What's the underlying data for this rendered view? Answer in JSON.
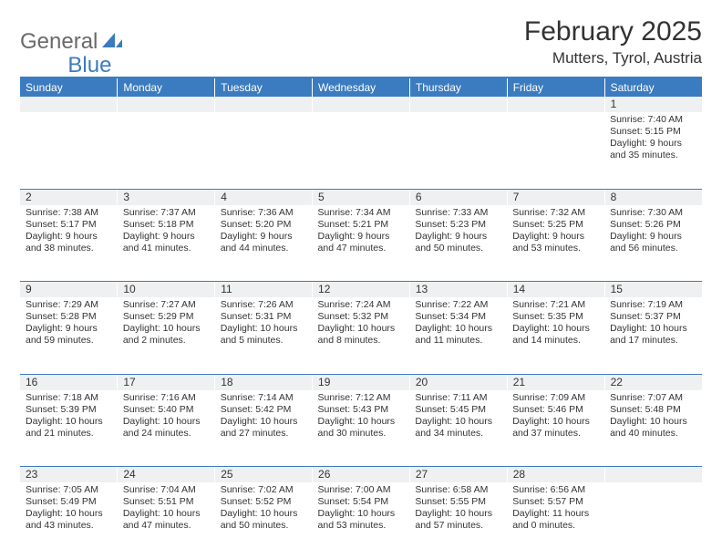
{
  "logo": {
    "part1": "General",
    "part2": "Blue"
  },
  "title": "February 2025",
  "location": "Mutters, Tyrol, Austria",
  "colors": {
    "header_bar": "#3b7bbf",
    "daynum_bg": "#eef0f1",
    "text": "#333333",
    "logo_gray": "#6a6a6a",
    "logo_blue": "#3b7bbf"
  },
  "weekdays": [
    "Sunday",
    "Monday",
    "Tuesday",
    "Wednesday",
    "Thursday",
    "Friday",
    "Saturday"
  ],
  "weeks": [
    [
      null,
      null,
      null,
      null,
      null,
      null,
      {
        "n": "1",
        "sr": "Sunrise: 7:40 AM",
        "ss": "Sunset: 5:15 PM",
        "dl": "Daylight: 9 hours and 35 minutes."
      }
    ],
    [
      {
        "n": "2",
        "sr": "Sunrise: 7:38 AM",
        "ss": "Sunset: 5:17 PM",
        "dl": "Daylight: 9 hours and 38 minutes."
      },
      {
        "n": "3",
        "sr": "Sunrise: 7:37 AM",
        "ss": "Sunset: 5:18 PM",
        "dl": "Daylight: 9 hours and 41 minutes."
      },
      {
        "n": "4",
        "sr": "Sunrise: 7:36 AM",
        "ss": "Sunset: 5:20 PM",
        "dl": "Daylight: 9 hours and 44 minutes."
      },
      {
        "n": "5",
        "sr": "Sunrise: 7:34 AM",
        "ss": "Sunset: 5:21 PM",
        "dl": "Daylight: 9 hours and 47 minutes."
      },
      {
        "n": "6",
        "sr": "Sunrise: 7:33 AM",
        "ss": "Sunset: 5:23 PM",
        "dl": "Daylight: 9 hours and 50 minutes."
      },
      {
        "n": "7",
        "sr": "Sunrise: 7:32 AM",
        "ss": "Sunset: 5:25 PM",
        "dl": "Daylight: 9 hours and 53 minutes."
      },
      {
        "n": "8",
        "sr": "Sunrise: 7:30 AM",
        "ss": "Sunset: 5:26 PM",
        "dl": "Daylight: 9 hours and 56 minutes."
      }
    ],
    [
      {
        "n": "9",
        "sr": "Sunrise: 7:29 AM",
        "ss": "Sunset: 5:28 PM",
        "dl": "Daylight: 9 hours and 59 minutes."
      },
      {
        "n": "10",
        "sr": "Sunrise: 7:27 AM",
        "ss": "Sunset: 5:29 PM",
        "dl": "Daylight: 10 hours and 2 minutes."
      },
      {
        "n": "11",
        "sr": "Sunrise: 7:26 AM",
        "ss": "Sunset: 5:31 PM",
        "dl": "Daylight: 10 hours and 5 minutes."
      },
      {
        "n": "12",
        "sr": "Sunrise: 7:24 AM",
        "ss": "Sunset: 5:32 PM",
        "dl": "Daylight: 10 hours and 8 minutes."
      },
      {
        "n": "13",
        "sr": "Sunrise: 7:22 AM",
        "ss": "Sunset: 5:34 PM",
        "dl": "Daylight: 10 hours and 11 minutes."
      },
      {
        "n": "14",
        "sr": "Sunrise: 7:21 AM",
        "ss": "Sunset: 5:35 PM",
        "dl": "Daylight: 10 hours and 14 minutes."
      },
      {
        "n": "15",
        "sr": "Sunrise: 7:19 AM",
        "ss": "Sunset: 5:37 PM",
        "dl": "Daylight: 10 hours and 17 minutes."
      }
    ],
    [
      {
        "n": "16",
        "sr": "Sunrise: 7:18 AM",
        "ss": "Sunset: 5:39 PM",
        "dl": "Daylight: 10 hours and 21 minutes."
      },
      {
        "n": "17",
        "sr": "Sunrise: 7:16 AM",
        "ss": "Sunset: 5:40 PM",
        "dl": "Daylight: 10 hours and 24 minutes."
      },
      {
        "n": "18",
        "sr": "Sunrise: 7:14 AM",
        "ss": "Sunset: 5:42 PM",
        "dl": "Daylight: 10 hours and 27 minutes."
      },
      {
        "n": "19",
        "sr": "Sunrise: 7:12 AM",
        "ss": "Sunset: 5:43 PM",
        "dl": "Daylight: 10 hours and 30 minutes."
      },
      {
        "n": "20",
        "sr": "Sunrise: 7:11 AM",
        "ss": "Sunset: 5:45 PM",
        "dl": "Daylight: 10 hours and 34 minutes."
      },
      {
        "n": "21",
        "sr": "Sunrise: 7:09 AM",
        "ss": "Sunset: 5:46 PM",
        "dl": "Daylight: 10 hours and 37 minutes."
      },
      {
        "n": "22",
        "sr": "Sunrise: 7:07 AM",
        "ss": "Sunset: 5:48 PM",
        "dl": "Daylight: 10 hours and 40 minutes."
      }
    ],
    [
      {
        "n": "23",
        "sr": "Sunrise: 7:05 AM",
        "ss": "Sunset: 5:49 PM",
        "dl": "Daylight: 10 hours and 43 minutes."
      },
      {
        "n": "24",
        "sr": "Sunrise: 7:04 AM",
        "ss": "Sunset: 5:51 PM",
        "dl": "Daylight: 10 hours and 47 minutes."
      },
      {
        "n": "25",
        "sr": "Sunrise: 7:02 AM",
        "ss": "Sunset: 5:52 PM",
        "dl": "Daylight: 10 hours and 50 minutes."
      },
      {
        "n": "26",
        "sr": "Sunrise: 7:00 AM",
        "ss": "Sunset: 5:54 PM",
        "dl": "Daylight: 10 hours and 53 minutes."
      },
      {
        "n": "27",
        "sr": "Sunrise: 6:58 AM",
        "ss": "Sunset: 5:55 PM",
        "dl": "Daylight: 10 hours and 57 minutes."
      },
      {
        "n": "28",
        "sr": "Sunrise: 6:56 AM",
        "ss": "Sunset: 5:57 PM",
        "dl": "Daylight: 11 hours and 0 minutes."
      },
      null
    ]
  ]
}
